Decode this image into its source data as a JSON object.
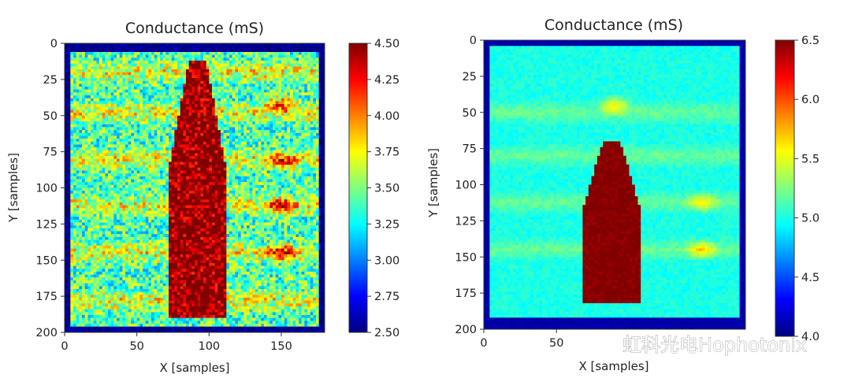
{
  "watermark": "虹科光电Hophotonix",
  "chart_data": [
    {
      "type": "heatmap",
      "title": "Conductance (mS)",
      "xlabel": "X [samples]",
      "ylabel": "Y [samples]",
      "xlim": [
        0,
        180
      ],
      "ylim": [
        200,
        0
      ],
      "xticks": [
        0,
        50,
        100,
        150
      ],
      "yticks": [
        0,
        25,
        50,
        75,
        100,
        125,
        150,
        175,
        200
      ],
      "colormap": "jet",
      "colorbar": {
        "min": 2.5,
        "max": 4.5,
        "ticks": [
          "2.50",
          "2.75",
          "3.00",
          "3.25",
          "3.50",
          "3.75",
          "4.00",
          "4.25",
          "4.50"
        ]
      },
      "field": {
        "background": 2.5,
        "plate_x": [
          4,
          176
        ],
        "plate_y": [
          6,
          196
        ],
        "plate_level": 3.4,
        "stripes_y": [
          20,
          48,
          80,
          112,
          145,
          178
        ],
        "stripe_level": 3.75,
        "hotspots": [
          {
            "x": 150,
            "y": 42,
            "level": 4.1
          },
          {
            "x": 150,
            "y": 82,
            "level": 4.1
          },
          {
            "x": 150,
            "y": 112,
            "level": 4.05
          },
          {
            "x": 150,
            "y": 145,
            "level": 4.05
          }
        ],
        "bottle": {
          "x_center": 92,
          "y_top": 12,
          "y_bottom": 190,
          "level": 4.5
        },
        "noise": 0.35
      }
    },
    {
      "type": "heatmap",
      "title": "Conductance (mS)",
      "xlabel": "X [samples]",
      "ylabel": "Y [samples]",
      "xlim": [
        0,
        180
      ],
      "ylim": [
        200,
        0
      ],
      "xticks": [
        0,
        50
      ],
      "yticks": [
        0,
        25,
        50,
        75,
        100,
        125,
        150,
        175,
        200
      ],
      "colormap": "jet",
      "colorbar": {
        "min": 4.0,
        "max": 6.5,
        "ticks": [
          "4.0",
          "4.5",
          "5.0",
          "5.5",
          "6.0",
          "6.5"
        ]
      },
      "field": {
        "background": 4.1,
        "plate_x": [
          3,
          177
        ],
        "plate_y": [
          4,
          192
        ],
        "plate_level": 5.0,
        "stripes_y": [
          50,
          80,
          112,
          145
        ],
        "stripe_level": 5.2,
        "hotspots": [
          {
            "x": 150,
            "y": 145,
            "level": 5.55
          },
          {
            "x": 150,
            "y": 112,
            "level": 5.45
          },
          {
            "x": 90,
            "y": 45,
            "level": 5.5
          }
        ],
        "bottle": {
          "x_center": 88,
          "y_top": 70,
          "y_bottom": 182,
          "level": 6.5
        },
        "noise": 0.08
      }
    }
  ]
}
